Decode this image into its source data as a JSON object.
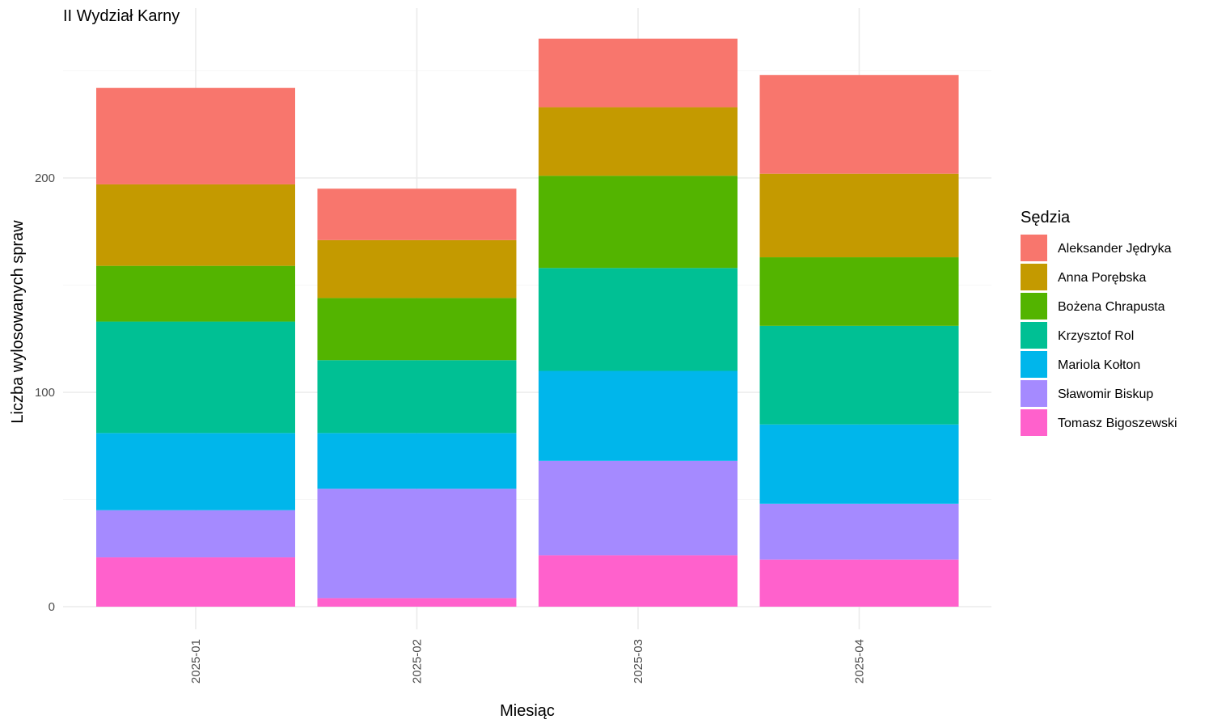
{
  "chart_data": {
    "type": "bar",
    "stacked": true,
    "title": "II Wydział Karny",
    "xlabel": "Miesiąc",
    "ylabel": "Liczba wylosowanych spraw",
    "categories": [
      "2025-01",
      "2025-02",
      "2025-03",
      "2025-04"
    ],
    "ylim": [
      0,
      270
    ],
    "yticks": [
      0,
      100,
      200
    ],
    "grid": true,
    "legend": {
      "title": "Sędzia",
      "position": "right"
    },
    "series": [
      {
        "name": "Tomasz Bigoszewski",
        "color": "#FF61CC",
        "values": [
          23,
          4,
          24,
          22
        ]
      },
      {
        "name": "Sławomir Biskup",
        "color": "#A58AFF",
        "values": [
          22,
          51,
          44,
          26
        ]
      },
      {
        "name": "Mariola Kołton",
        "color": "#00B6EB",
        "values": [
          36,
          26,
          42,
          37
        ]
      },
      {
        "name": "Krzysztof Rol",
        "color": "#00C094",
        "values": [
          52,
          34,
          48,
          46
        ]
      },
      {
        "name": "Bożena Chrapusta",
        "color": "#53B400",
        "values": [
          26,
          29,
          43,
          32
        ]
      },
      {
        "name": "Anna Porębska",
        "color": "#C49A00",
        "values": [
          38,
          27,
          32,
          39
        ]
      },
      {
        "name": "Aleksander Jędryka",
        "color": "#F8766D",
        "values": [
          45,
          24,
          32,
          46
        ]
      }
    ]
  }
}
